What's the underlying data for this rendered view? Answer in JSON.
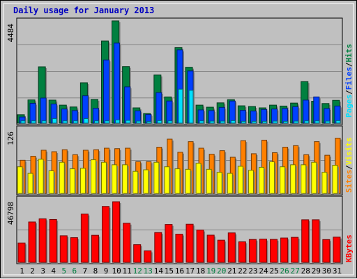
{
  "title": "Daily usage for January 2013",
  "colors": {
    "hits": "#008040",
    "files": "#0040ff",
    "pages": "#00e0ff",
    "visits": "#ffff00",
    "sites": "#ff8000",
    "kbytes": "#ff0000",
    "weekend_label": "#008040",
    "weekday_label": "#000000",
    "title": "#0000c0"
  },
  "legends": {
    "top": [
      "Pages",
      "Files",
      "Hits"
    ],
    "mid": [
      "Sites",
      "Visits"
    ],
    "bot": [
      "KBytes"
    ]
  },
  "chart_data": {
    "type": "bar",
    "title": "Daily usage for January 2013",
    "categories": [
      "1",
      "2",
      "3",
      "4",
      "5",
      "6",
      "7",
      "8",
      "9",
      "10",
      "11",
      "12",
      "13",
      "14",
      "15",
      "16",
      "17",
      "18",
      "19",
      "20",
      "21",
      "22",
      "23",
      "24",
      "25",
      "26",
      "27",
      "28",
      "29",
      "30",
      "31"
    ],
    "weekend_days": [
      5,
      6,
      12,
      13,
      19,
      20,
      26,
      27
    ],
    "panels": [
      {
        "name": "top",
        "ymax_label": "4484",
        "ymax": 4484,
        "series": [
          {
            "name": "Hits",
            "values": [
              370,
              1020,
              2470,
              1010,
              790,
              710,
              1770,
              1040,
              3600,
              4484,
              2480,
              670,
              420,
              2110,
              1150,
              3310,
              2450,
              790,
              700,
              890,
              1030,
              760,
              730,
              670,
              790,
              750,
              880,
              1820,
              960,
              860,
              1000
            ]
          },
          {
            "name": "Files",
            "values": [
              270,
              870,
              1100,
              840,
              620,
              550,
              1200,
              650,
              2770,
              3510,
              1590,
              540,
              380,
              1340,
              970,
              3210,
              2290,
              580,
              550,
              690,
              970,
              560,
              530,
              600,
              620,
              640,
              720,
              1010,
              1150,
              640,
              750
            ]
          },
          {
            "name": "Pages",
            "values": [
              100,
              100,
              100,
              200,
              100,
              100,
              200,
              100,
              100,
              140,
              120,
              90,
              70,
              110,
              100,
              1490,
              1440,
              100,
              90,
              90,
              110,
              80,
              80,
              80,
              90,
              80,
              90,
              100,
              100,
              90,
              110
            ]
          }
        ]
      },
      {
        "name": "mid",
        "ymax_label": "126",
        "ymax": 126,
        "series": [
          {
            "name": "Sites",
            "values": [
              66,
              74,
              86,
              83,
              87,
              77,
              86,
              87,
              90,
              89,
              90,
              63,
              63,
              92,
              108,
              82,
              103,
              90,
              78,
              85,
              72,
              105,
              79,
              106,
              81,
              92,
              95,
              77,
              103,
              76,
              110
            ]
          },
          {
            "name": "Visits",
            "values": [
              53,
              40,
              68,
              45,
              62,
              49,
              50,
              67,
              62,
              57,
              57,
              44,
              47,
              62,
              53,
              49,
              48,
              60,
              48,
              42,
              40,
              54,
              46,
              52,
              63,
              53,
              57,
              57,
              62,
              42,
              56
            ]
          }
        ]
      },
      {
        "name": "bot",
        "ymax_label": "46798",
        "ymax": 46798,
        "series": [
          {
            "name": "KBytes",
            "values": [
              14940,
              31190,
              33590,
              33110,
              20500,
              19050,
              37310,
              20890,
              43170,
              46798,
              30200,
              13640,
              8830,
              23000,
              29250,
              21780,
              29460,
              24930,
              21000,
              17120,
              22730,
              15830,
              17650,
              17910,
              17710,
              18790,
              19310,
              32870,
              32870,
              17570,
              19470
            ]
          }
        ]
      }
    ]
  }
}
